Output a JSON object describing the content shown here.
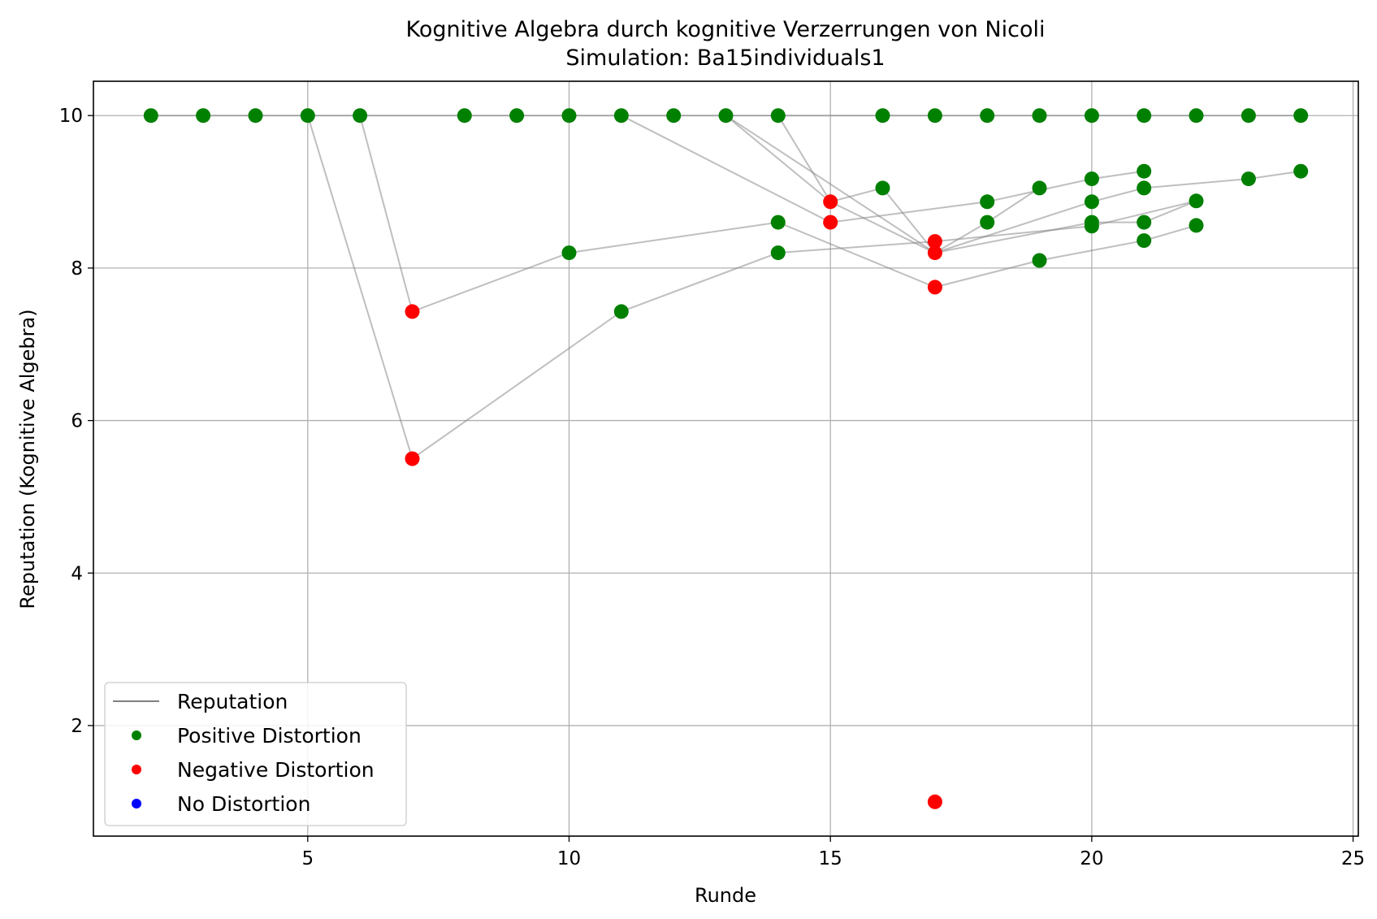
{
  "chart_data": {
    "type": "scatter",
    "title": "Kognitive Algebra durch kognitive Verzerrungen von Nicoli",
    "subtitle": "Simulation: Ba15individuals1",
    "xlabel": "Runde",
    "ylabel": "Reputation (Kognitive Algebra)",
    "xlim": [
      0.9,
      25.1
    ],
    "ylim": [
      0.55,
      10.45
    ],
    "x_ticks": [
      5,
      10,
      15,
      20,
      25
    ],
    "y_ticks": [
      2,
      4,
      6,
      8,
      10
    ],
    "grid": true,
    "legend_position": "lower-left",
    "legend": [
      {
        "label": "Reputation",
        "kind": "line",
        "color": "#808080"
      },
      {
        "label": "Positive Distortion",
        "kind": "marker",
        "color": "#008000"
      },
      {
        "label": "Negative Distortion",
        "kind": "marker",
        "color": "#ff0000"
      },
      {
        "label": "No Distortion",
        "kind": "marker",
        "color": "#0000ff"
      }
    ],
    "reputation_paths": [
      {
        "x": [
          2,
          3,
          4,
          5,
          6,
          8,
          9,
          10,
          11,
          12,
          13,
          14,
          16,
          17,
          18,
          19,
          20,
          21,
          22,
          23,
          24
        ],
        "y": [
          10,
          10,
          10,
          10,
          10,
          10,
          10,
          10,
          10,
          10,
          10,
          10,
          10,
          10,
          10,
          10,
          10,
          10,
          10,
          10,
          10
        ]
      },
      {
        "x": [
          5,
          7,
          11,
          14,
          17,
          20,
          22
        ],
        "y": [
          10,
          5.5,
          7.43,
          8.2,
          8.35,
          8.55,
          8.88
        ]
      },
      {
        "x": [
          6,
          7,
          10,
          14,
          17,
          19,
          21,
          22
        ],
        "y": [
          10,
          7.43,
          8.2,
          8.6,
          7.75,
          8.1,
          8.36,
          8.56
        ]
      },
      {
        "x": [
          11,
          15,
          18,
          20,
          21
        ],
        "y": [
          10,
          8.6,
          8.87,
          9.17,
          9.27
        ]
      },
      {
        "x": [
          13,
          15,
          16,
          17,
          18,
          19
        ],
        "y": [
          10,
          8.87,
          9.05,
          8.2,
          8.6,
          9.05
        ]
      },
      {
        "x": [
          13,
          17,
          20,
          21,
          23,
          24
        ],
        "y": [
          10,
          8.2,
          8.87,
          9.05,
          9.17,
          9.27
        ]
      },
      {
        "x": [
          14,
          15,
          17,
          20,
          21,
          22
        ],
        "y": [
          10,
          8.87,
          8.2,
          8.6,
          8.6,
          8.88
        ]
      }
    ],
    "points": [
      {
        "x": 2,
        "y": 10,
        "distortion": "positive"
      },
      {
        "x": 3,
        "y": 10,
        "distortion": "positive"
      },
      {
        "x": 4,
        "y": 10,
        "distortion": "positive"
      },
      {
        "x": 5,
        "y": 10,
        "distortion": "positive"
      },
      {
        "x": 6,
        "y": 10,
        "distortion": "positive"
      },
      {
        "x": 8,
        "y": 10,
        "distortion": "positive"
      },
      {
        "x": 9,
        "y": 10,
        "distortion": "positive"
      },
      {
        "x": 10,
        "y": 10,
        "distortion": "positive"
      },
      {
        "x": 11,
        "y": 10,
        "distortion": "positive"
      },
      {
        "x": 12,
        "y": 10,
        "distortion": "positive"
      },
      {
        "x": 13,
        "y": 10,
        "distortion": "positive"
      },
      {
        "x": 14,
        "y": 10,
        "distortion": "positive"
      },
      {
        "x": 16,
        "y": 10,
        "distortion": "positive"
      },
      {
        "x": 17,
        "y": 10,
        "distortion": "positive"
      },
      {
        "x": 18,
        "y": 10,
        "distortion": "positive"
      },
      {
        "x": 19,
        "y": 10,
        "distortion": "positive"
      },
      {
        "x": 20,
        "y": 10,
        "distortion": "positive"
      },
      {
        "x": 21,
        "y": 10,
        "distortion": "positive"
      },
      {
        "x": 22,
        "y": 10,
        "distortion": "positive"
      },
      {
        "x": 23,
        "y": 10,
        "distortion": "positive"
      },
      {
        "x": 24,
        "y": 10,
        "distortion": "positive"
      },
      {
        "x": 7,
        "y": 7.43,
        "distortion": "negative"
      },
      {
        "x": 7,
        "y": 5.5,
        "distortion": "negative"
      },
      {
        "x": 10,
        "y": 8.2,
        "distortion": "positive"
      },
      {
        "x": 11,
        "y": 7.43,
        "distortion": "positive"
      },
      {
        "x": 14,
        "y": 8.6,
        "distortion": "positive"
      },
      {
        "x": 14,
        "y": 8.2,
        "distortion": "positive"
      },
      {
        "x": 15,
        "y": 8.87,
        "distortion": "negative"
      },
      {
        "x": 15,
        "y": 8.6,
        "distortion": "negative"
      },
      {
        "x": 16,
        "y": 9.05,
        "distortion": "positive"
      },
      {
        "x": 17,
        "y": 8.35,
        "distortion": "negative"
      },
      {
        "x": 17,
        "y": 8.2,
        "distortion": "negative"
      },
      {
        "x": 17,
        "y": 7.75,
        "distortion": "negative"
      },
      {
        "x": 17,
        "y": 1.0,
        "distortion": "negative"
      },
      {
        "x": 18,
        "y": 8.87,
        "distortion": "positive"
      },
      {
        "x": 18,
        "y": 8.6,
        "distortion": "positive"
      },
      {
        "x": 19,
        "y": 9.05,
        "distortion": "positive"
      },
      {
        "x": 19,
        "y": 8.1,
        "distortion": "positive"
      },
      {
        "x": 20,
        "y": 9.17,
        "distortion": "positive"
      },
      {
        "x": 20,
        "y": 8.87,
        "distortion": "positive"
      },
      {
        "x": 20,
        "y": 8.6,
        "distortion": "positive"
      },
      {
        "x": 20,
        "y": 8.55,
        "distortion": "positive"
      },
      {
        "x": 21,
        "y": 9.27,
        "distortion": "positive"
      },
      {
        "x": 21,
        "y": 9.05,
        "distortion": "positive"
      },
      {
        "x": 21,
        "y": 8.6,
        "distortion": "positive"
      },
      {
        "x": 21,
        "y": 8.36,
        "distortion": "positive"
      },
      {
        "x": 22,
        "y": 8.88,
        "distortion": "positive"
      },
      {
        "x": 22,
        "y": 8.56,
        "distortion": "positive"
      },
      {
        "x": 23,
        "y": 9.17,
        "distortion": "positive"
      },
      {
        "x": 24,
        "y": 9.27,
        "distortion": "positive"
      }
    ],
    "distortion_colors": {
      "positive": "#008000",
      "negative": "#ff0000",
      "none": "#0000ff"
    }
  }
}
